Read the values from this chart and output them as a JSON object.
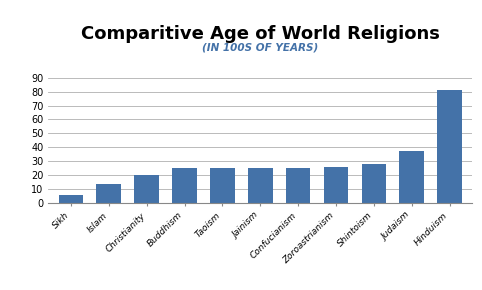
{
  "title": "Comparitive Age of World Religions",
  "subtitle": "(IN 100S OF YEARS)",
  "categories": [
    "Sikh",
    "Islam",
    "Christianity",
    "Buddhism",
    "Taoism",
    "Jainism",
    "Confucianism",
    "Zoroastrianism",
    "Shintoism",
    "Judaism",
    "Hinduism"
  ],
  "values": [
    6,
    14,
    20,
    25,
    25,
    25,
    25,
    26,
    28,
    37,
    81
  ],
  "bar_color": "#4472a8",
  "ylim": [
    0,
    100
  ],
  "yticks": [
    0,
    10,
    20,
    30,
    40,
    50,
    60,
    70,
    80,
    90
  ],
  "title_fontsize": 13,
  "subtitle_fontsize": 7.5,
  "tick_label_fontsize": 6.5,
  "ytick_fontsize": 7,
  "background_color": "#ffffff",
  "grid_color": "#b0b0b0",
  "title_color": "#000000",
  "subtitle_color": "#4472a8"
}
